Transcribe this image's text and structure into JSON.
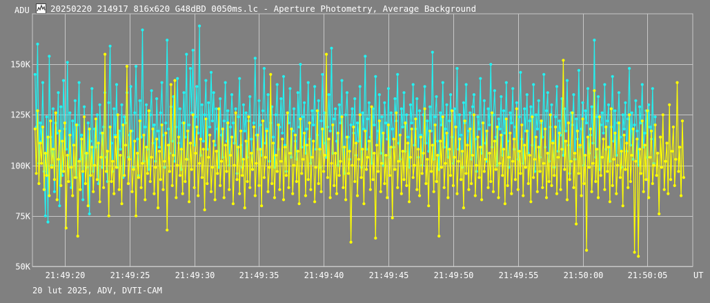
{
  "window": {
    "title": "20250220_214917_816x620_G48dBD_0050ms.lc - Aperture Photometry, Average Background"
  },
  "footer": {
    "info": "20 lut 2025, ADV, DVTI-CAM"
  },
  "colors": {
    "background": "#808080",
    "grid": "#c8c8c8",
    "text": "#ffffff",
    "series_cyan": "#22f2f2",
    "series_yellow": "#ffff00"
  },
  "icons": {
    "app": "chart-app-icon"
  },
  "chart_data": {
    "type": "line",
    "title": "",
    "ylabel": "ADU",
    "xlabel": "UT",
    "ylim": [
      50000,
      175000
    ],
    "xlim": [
      "21:49:17.5",
      "21:50:08.5"
    ],
    "y_ticks": [
      {
        "value": 50000,
        "label": "50K"
      },
      {
        "value": 75000,
        "label": "75K"
      },
      {
        "value": 100000,
        "label": "100K"
      },
      {
        "value": 125000,
        "label": "125K"
      },
      {
        "value": 150000,
        "label": "150K"
      }
    ],
    "x_ticks": [
      {
        "value": "21:49:20",
        "label": "21:49:20"
      },
      {
        "value": "21:49:25",
        "label": "21:49:25"
      },
      {
        "value": "21:49:30",
        "label": "21:49:30"
      },
      {
        "value": "21:49:35",
        "label": "21:49:35"
      },
      {
        "value": "21:49:40",
        "label": "21:49:40"
      },
      {
        "value": "21:49:45",
        "label": "21:49:45"
      },
      {
        "value": "21:49:50",
        "label": "21:49:50"
      },
      {
        "value": "21:49:55",
        "label": "21:49:55"
      },
      {
        "value": "21:50:00",
        "label": "21:50:00"
      },
      {
        "value": "21:50:05",
        "label": "21:50:05"
      }
    ],
    "grid": true,
    "markers": true,
    "x_start": "21:49:17.7",
    "x_step_s": 0.1,
    "series": [
      {
        "color": "#22f2f2",
        "values": [
          145000,
          119000,
          160000,
          101000,
          121000,
          112000,
          141000,
          97000,
          75000,
          124000,
          72000,
          154000,
          114000,
          100000,
          128000,
          87000,
          121000,
          116000,
          136000,
          80000,
          129000,
          95000,
          142000,
          118000,
          108000,
          151000,
          99000,
          126000,
          89000,
          122000,
          110000,
          132000,
          94000,
          120000,
          141000,
          103000,
          115000,
          83000,
          129000,
          106000,
          99000,
          121000,
          76000,
          112000,
          138000,
          97000,
          118000,
          109000,
          125000,
          91000,
          130000,
          116000,
          99000,
          119000,
          136000,
          104000,
          92000,
          131000,
          159000,
          111000,
          97000,
          128000,
          115000,
          140000,
          99000,
          117000,
          108000,
          130000,
          94000,
          124000,
          121000,
          136000,
          104000,
          115000,
          139000,
          117000,
          99000,
          126000,
          149000,
          113000,
          95000,
          132000,
          114000,
          167000,
          102000,
          119000,
          130000,
          108000,
          98000,
          125000,
          137000,
          111000,
          120000,
          102000,
          133000,
          117000,
          109000,
          126000,
          141000,
          115000,
          99000,
          121000,
          162000,
          118000,
          106000,
          129000,
          112000,
          134000,
          102000,
          119000,
          143000,
          111000,
          128000,
          98000,
          121000,
          136000,
          114000,
          155000,
          103000,
          120000,
          148000,
          126000,
          157000,
          110000,
          124000,
          139000,
          116000,
          169000,
          105000,
          130000,
          112000,
          125000,
          142000,
          108000,
          131000,
          119000,
          146000,
          122000,
          136000,
          110000,
          128000,
          118000,
          99000,
          133000,
          115000,
          104000,
          122000,
          141000,
          112000,
          127000,
          100000,
          119000,
          135000,
          121000,
          111000,
          128000,
          96000,
          124000,
          143000,
          110000,
          99000,
          130000,
          117000,
          126000,
          104000,
          122000,
          134000,
          113000,
          98000,
          121000,
          153000,
          115000,
          108000,
          132000,
          120000,
          105000,
          127000,
          148000,
          111000,
          118000,
          135000,
          102000,
          121000,
          129000,
          114000,
          99000,
          125000,
          140000,
          108000,
          119000,
          133000,
          116000,
          144000,
          110000,
          97000,
          126000,
          121000,
          138000,
          104000,
          117000,
          128000,
          112000,
          103000,
          136000,
          119000,
          150000,
          109000,
          124000,
          131000,
          106000,
          118000,
          141000,
          113000,
          101000,
          127000,
          120000,
          139000,
          108000,
          115000,
          132000,
          99000,
          122000,
          145000,
          111000,
          126000,
          104000,
          119000,
          135000,
          117000,
          158000,
          106000,
          123000,
          128000,
          112000,
          100000,
          130000,
          121000,
          142000,
          109000,
          96000,
          125000,
          136000,
          114000,
          103000,
          120000,
          128000,
          116000,
          133000,
          105000,
          121000,
          112000,
          139000,
          99000,
          126000,
          118000,
          154000,
          108000,
          123000,
          131000,
          114000,
          101000,
          128000,
          120000,
          144000,
          110000,
          117000,
          135000,
          106000,
          124000,
          100000,
          131000,
          121000,
          113000,
          138000,
          104000,
          126000,
          118000,
          109000,
          133000,
          122000,
          145000,
          111000,
          103000,
          128000,
          119000,
          136000,
          107000,
          125000,
          114000,
          99000,
          130000,
          121000,
          140000,
          110000,
          118000,
          133000,
          104000,
          127000,
          115000,
          100000,
          125000,
          139000,
          111000,
          122000,
          107000,
          129000,
          117000,
          156000,
          103000,
          124000,
          134000,
          112000,
          98000,
          126000,
          120000,
          141000,
          109000,
          118000,
          130000,
          104000,
          122000,
          135000,
          114000,
          101000,
          128000,
          119000,
          148000,
          108000,
          125000,
          115000,
          99000,
          131000,
          121000,
          140000,
          110000,
          117000,
          126000,
          103000,
          129000,
          135000,
          113000,
          97000,
          124000,
          118000,
          143000,
          106000,
          121000,
          132000,
          111000,
          102000,
          128000,
          120000,
          150000,
          109000,
          125000,
          137000,
          114000,
          100000,
          123000,
          118000,
          134000,
          105000,
          127000,
          116000,
          141000,
          112000,
          99000,
          126000,
          121000,
          138000,
          108000,
          119000,
          131000,
          103000,
          124000,
          146000,
          113000,
          101000,
          128000,
          117000,
          135000,
          106000,
          122000,
          129000,
          110000,
          140000,
          97000,
          125000,
          118000,
          132000,
          104000,
          121000,
          114000,
          145000,
          109000,
          127000,
          136000,
          102000,
          119000,
          130000,
          112000,
          99000,
          124000,
          139000,
          107000,
          122000,
          115000,
          133000,
          105000,
          128000,
          117000,
          142000,
          110000,
          96000,
          126000,
          120000,
          135000,
          103000,
          123000,
          113000,
          147000,
          109000,
          118000,
          131000,
          100000,
          127000,
          121000,
          138000,
          106000,
          115000,
          129000,
          111000,
          162000,
          104000,
          124000,
          134000,
          98000,
          120000,
          126000,
          116000,
          140000,
          108000,
          122000,
          130000,
          102000,
          119000,
          144000,
          112000,
          127000,
          105000,
          121000,
          136000,
          114000,
          99000,
          125000,
          118000,
          131000,
          107000,
          123000,
          148000,
          110000,
          126000,
          103000,
          120000,
          132000,
          117000,
          100000,
          129000,
          121000,
          140000,
          109000,
          116000,
          127000,
          104000,
          130000,
          119000,
          113000,
          138000,
          101000,
          124000
        ]
      },
      {
        "color": "#ffff00",
        "values": [
          118000,
          96000,
          127000,
          91000,
          111000,
          101000,
          119000,
          88000,
          106000,
          95000,
          114000,
          85000,
          122000,
          99000,
          108000,
          93000,
          126000,
          83000,
          103000,
          117000,
          90000,
          112000,
          97000,
          121000,
          69000,
          105000,
          92000,
          115000,
          99000,
          85000,
          110000,
          94000,
          120000,
          65000,
          102000,
          88000,
          113000,
          97000,
          124000,
          91000,
          106000,
          80000,
          118000,
          95000,
          109000,
          87000,
          100000,
          123000,
          93000,
          111000,
          82000,
          104000,
          116000,
          89000,
          155000,
          97000,
          107000,
          75000,
          119000,
          92000,
          102000,
          86000,
          114000,
          99000,
          125000,
          88000,
          105000,
          81000,
          120000,
          95000,
          110000,
          149000,
          91000,
          103000,
          117000,
          87000,
          98000,
          112000,
          75000,
          106000,
          94000,
          122000,
          89000,
          101000,
          115000,
          83000,
          109000,
          96000,
          127000,
          92000,
          104000,
          118000,
          86000,
          99000,
          113000,
          79000,
          107000,
          93000,
          120000,
          88000,
          102000,
          116000,
          68000,
          110000,
          97000,
          140000,
          90000,
          105000,
          142000,
          84000,
          100000,
          114000,
          95000,
          108000,
          86000,
          121000,
          92000,
          103000,
          117000,
          82000,
          111000,
          98000,
          125000,
          89000,
          106000,
          119000,
          85000,
          101000,
          113000,
          94000,
          108000,
          78000,
          123000,
          91000,
          104000,
          115000,
          87000,
          99000,
          112000,
          83000,
          107000,
          96000,
          128000,
          90000,
          102000,
          118000,
          84000,
          110000,
          97000,
          121000,
          88000,
          105000,
          114000,
          81000,
          100000,
          126000,
          93000,
          109000,
          86000,
          117000,
          95000,
          103000,
          79000,
          112000,
          92000,
          124000,
          89000,
          106000,
          98000,
          119000,
          85000,
          101000,
          115000,
          90000,
          108000,
          80000,
          122000,
          94000,
          104000,
          117000,
          87000,
          99000,
          145000,
          91000,
          111000,
          84000,
          105000,
          97000,
          120000,
          88000,
          102000,
          113000,
          83000,
          109000,
          95000,
          126000,
          89000,
          106000,
          118000,
          86000,
          100000,
          115000,
          92000,
          107000,
          81000,
          123000,
          96000,
          103000,
          116000,
          85000,
          110000,
          93000,
          121000,
          88000,
          104000,
          112000,
          82000,
          99000,
          127000,
          91000,
          108000,
          87000,
          118000,
          97000,
          105000,
          155000,
          94000,
          113000,
          84000,
          101000,
          120000,
          90000,
          106000,
          86000,
          116000,
          95000,
          102000,
          124000,
          89000,
          109000,
          83000,
          114000,
          96000,
          107000,
          62000,
          100000,
          119000,
          92000,
          111000,
          85000,
          103000,
          125000,
          94000,
          108000,
          81000,
          117000,
          98000,
          104000,
          112000,
          88000,
          129000,
          93000,
          106000,
          64000,
          110000,
          97000,
          122000,
          87000,
          101000,
          116000,
          91000,
          105000,
          84000,
          120000,
          95000,
          109000,
          74000,
          113000,
          98000,
          126000,
          89000,
          102000,
          115000,
          86000,
          107000,
          93000,
          121000,
          90000,
          111000,
          82000,
          104000,
          118000,
          94000,
          100000,
          123000,
          88000,
          108000,
          85000,
          114000,
          96000,
          106000,
          128000,
          91000,
          103000,
          80000,
          117000,
          97000,
          110000,
          87000,
          120000,
          92000,
          105000,
          65000,
          112000,
          99000,
          124000,
          89000,
          101000,
          116000,
          84000,
          108000,
          95000,
          127000,
          90000,
          104000,
          119000,
          86000,
          102000,
          113000,
          93000,
          107000,
          79000,
          122000,
          96000,
          110000,
          88000,
          118000,
          91000,
          105000,
          125000,
          85000,
          100000,
          114000,
          94000,
          109000,
          83000,
          121000,
          97000,
          103000,
          117000,
          89000,
          106000,
          92000,
          126000,
          87000,
          112000,
          98000,
          119000,
          84000,
          101000,
          115000,
          95000,
          108000,
          81000,
          123000,
          90000,
          104000,
          116000,
          86000,
          102000,
          113000,
          93000,
          128000,
          88000,
          107000,
          96000,
          120000,
          85000,
          110000,
          99000,
          117000,
          91000,
          105000,
          82000,
          124000,
          94000,
          103000,
          114000,
          87000,
          109000,
          97000,
          122000,
          89000,
          101000,
          118000,
          84000,
          106000,
          92000,
          125000,
          90000,
          111000,
          95000,
          119000,
          86000,
          104000,
          116000,
          88000,
          108000,
          152000,
          98000,
          112000,
          83000,
          121000,
          93000,
          102000,
          126000,
          89000,
          106000,
          71000,
          117000,
          96000,
          110000,
          85000,
          123000,
          91000,
          105000,
          58000,
          114000,
          99000,
          118000,
          87000,
          101000,
          137000,
          92000,
          108000,
          84000,
          124000,
          95000,
          104000,
          113000,
          88000,
          119000,
          97000,
          109000,
          82000,
          128000,
          90000,
          103000,
          116000,
          86000,
          100000,
          121000,
          94000,
          107000,
          80000,
          115000,
          98000,
          111000,
          89000,
          125000,
          92000,
          105000,
          118000,
          57000,
          102000,
          113000,
          55000,
          108000,
          96000,
          122000,
          87000,
          110000,
          93000,
          127000,
          84000,
          104000,
          117000,
          91000,
          100000,
          120000,
          95000,
          106000,
          76000,
          114000,
          99000,
          125000,
          88000,
          102000,
          111000,
          86000,
          130000,
          93000,
          107000,
          119000,
          90000,
          103000,
          141000,
          97000,
          109000,
          85000,
          122000,
          94000
        ]
      }
    ]
  }
}
